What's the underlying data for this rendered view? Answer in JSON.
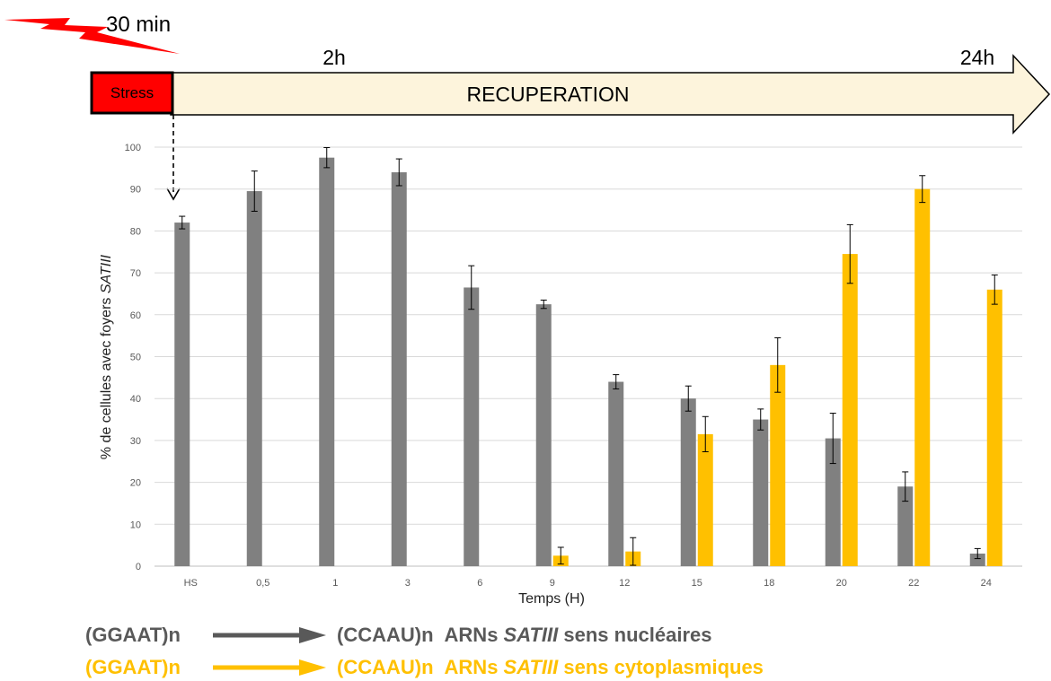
{
  "timeline": {
    "start_label": "30 min",
    "stress_label": "Stress",
    "recovery_label": "RECUPERATION",
    "mark_2h": "2h",
    "mark_24h": "24h"
  },
  "chart_data": {
    "type": "bar",
    "title": "",
    "xlabel": "Temps (H)",
    "ylabel_prefix": "% de cellules avec foyers ",
    "ylabel_italic": "SATIII",
    "ylim": [
      0,
      100
    ],
    "yticks": [
      0,
      10,
      20,
      30,
      40,
      50,
      60,
      70,
      80,
      90,
      100
    ],
    "grid": true,
    "categories": [
      "HS",
      "0,5",
      "1",
      "3",
      "6",
      "9",
      "12",
      "15",
      "18",
      "20",
      "22",
      "24"
    ],
    "series": [
      {
        "color": "#808080",
        "values": [
          82,
          89.5,
          97.5,
          94,
          66.5,
          62.5,
          44,
          40,
          35,
          30.5,
          19,
          3
        ],
        "errors": [
          1.5,
          4.8,
          2.4,
          3.2,
          5.2,
          1.0,
          1.7,
          3.0,
          2.5,
          6.0,
          3.5,
          1.2
        ]
      },
      {
        "color": "#ffc000",
        "values": [
          0,
          0,
          0,
          0,
          0,
          2.5,
          3.5,
          31.5,
          48,
          74.5,
          90,
          66
        ],
        "errors": [
          0,
          0,
          0,
          0,
          0,
          2.0,
          3.3,
          4.2,
          6.5,
          7.0,
          3.2,
          3.5
        ]
      }
    ]
  },
  "legend": [
    {
      "source": "(GGAAT)n",
      "target": "(CCAAU)n",
      "desc_prefix": "ARNs ",
      "desc_italic": "SATIII",
      "desc_suffix": " sens nucléaires",
      "color": "#595959"
    },
    {
      "source": "(GGAAT)n",
      "target": "(CCAAU)n",
      "desc_prefix": "ARNs ",
      "desc_italic": "SATIII",
      "desc_suffix": " sens cytoplasmiques",
      "color": "#ffc000"
    }
  ]
}
